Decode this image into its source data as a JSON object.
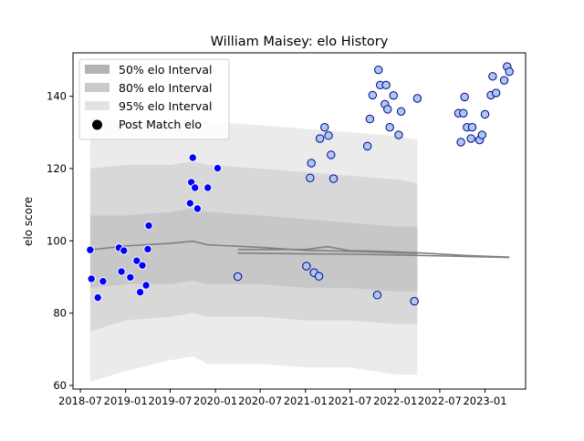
{
  "chart_data": {
    "type": "scatter",
    "title": "William Maisey: elo History",
    "xlabel": "",
    "ylabel": "elo score",
    "x_ticks": [
      "2018-07",
      "2019-01",
      "2019-07",
      "2020-01",
      "2020-07",
      "2021-01",
      "2021-07",
      "2022-01",
      "2022-07",
      "2023-01"
    ],
    "y_ticks": [
      60,
      80,
      100,
      120,
      140
    ],
    "xlim": [
      "2018-06-01",
      "2023-06-15"
    ],
    "ylim": [
      59,
      152
    ],
    "grid": false,
    "legend_position": "top-left",
    "legend": [
      {
        "label": "50% elo Interval",
        "color": "#b3b3b3"
      },
      {
        "label": "80% elo Interval",
        "color": "#cacaca"
      },
      {
        "label": "95% elo Interval",
        "color": "#e3e3e3"
      },
      {
        "label": "Post Match elo",
        "color": "#000000"
      }
    ],
    "series": [
      {
        "name": "Post Match elo",
        "kind": "points",
        "fill": "#0000ff",
        "edge": "#ffffff",
        "points": [
          [
            "2018-08-10",
            97.5
          ],
          [
            "2018-08-15",
            89.5
          ],
          [
            "2018-09-10",
            84.3
          ],
          [
            "2018-10-01",
            88.8
          ],
          [
            "2018-12-05",
            98.1
          ],
          [
            "2018-12-15",
            91.5
          ],
          [
            "2018-12-25",
            97.3
          ],
          [
            "2019-01-20",
            89.9
          ],
          [
            "2019-02-15",
            94.5
          ],
          [
            "2019-03-01",
            85.8
          ],
          [
            "2019-03-10",
            93.2
          ],
          [
            "2019-03-25",
            87.7
          ],
          [
            "2019-04-01",
            97.7
          ],
          [
            "2019-04-05",
            104.2
          ],
          [
            "2019-09-20",
            110.4
          ],
          [
            "2019-09-25",
            116.2
          ],
          [
            "2019-10-01",
            123.0
          ],
          [
            "2019-10-10",
            114.7
          ],
          [
            "2019-10-20",
            108.9
          ],
          [
            "2019-12-01",
            114.7
          ],
          [
            "2020-01-10",
            120.1
          ]
        ]
      },
      {
        "name": "Post Match elo",
        "kind": "points",
        "fill": "#aac8f0",
        "edge": "#00008b",
        "points": [
          [
            "2020-04-01",
            90.1
          ],
          [
            "2021-01-05",
            93.0
          ],
          [
            "2021-01-20",
            117.4
          ],
          [
            "2021-01-25",
            121.5
          ],
          [
            "2021-02-05",
            91.2
          ],
          [
            "2021-02-25",
            90.2
          ],
          [
            "2021-03-01",
            128.3
          ],
          [
            "2021-03-20",
            131.4
          ],
          [
            "2021-04-05",
            129.1
          ],
          [
            "2021-04-15",
            123.8
          ],
          [
            "2021-04-25",
            117.2
          ],
          [
            "2021-09-10",
            126.2
          ],
          [
            "2021-09-20",
            133.7
          ],
          [
            "2021-10-01",
            140.3
          ],
          [
            "2021-10-20",
            85.0
          ],
          [
            "2021-10-25",
            147.3
          ],
          [
            "2021-11-01",
            143.1
          ],
          [
            "2021-11-20",
            137.8
          ],
          [
            "2021-11-25",
            143.1
          ],
          [
            "2021-12-01",
            136.4
          ],
          [
            "2021-12-10",
            131.4
          ],
          [
            "2021-12-25",
            140.2
          ],
          [
            "2022-01-15",
            129.3
          ],
          [
            "2022-01-25",
            135.8
          ],
          [
            "2022-03-20",
            83.3
          ],
          [
            "2022-04-01",
            139.4
          ],
          [
            "2022-09-15",
            135.3
          ],
          [
            "2022-09-25",
            127.3
          ],
          [
            "2022-10-05",
            135.3
          ],
          [
            "2022-10-10",
            139.8
          ],
          [
            "2022-10-20",
            131.4
          ],
          [
            "2022-11-05",
            128.3
          ],
          [
            "2022-11-10",
            131.4
          ],
          [
            "2022-12-10",
            127.9
          ],
          [
            "2022-12-20",
            129.3
          ],
          [
            "2023-01-01",
            135.0
          ],
          [
            "2023-01-25",
            140.3
          ],
          [
            "2023-02-01",
            145.5
          ],
          [
            "2023-02-15",
            140.9
          ],
          [
            "2023-03-20",
            144.4
          ],
          [
            "2023-04-01",
            148.2
          ],
          [
            "2023-04-10",
            146.8
          ]
        ]
      },
      {
        "name": "",
        "kind": "line",
        "color": "#808080",
        "points": [
          [
            "2018-08-10",
            97.5
          ],
          [
            "2019-01-01",
            98.6
          ],
          [
            "2019-07-01",
            99.3
          ],
          [
            "2019-10-01",
            99.9
          ],
          [
            "2019-12-01",
            98.9
          ],
          [
            "2020-07-01",
            98.2
          ],
          [
            "2021-01-01",
            97.4
          ],
          [
            "2021-07-01",
            97.1
          ],
          [
            "2022-01-01",
            96.7
          ],
          [
            "2022-04-01",
            96.5
          ]
        ]
      },
      {
        "name": "",
        "kind": "line",
        "color": "#808080",
        "points": [
          [
            "2020-04-01",
            97.6
          ],
          [
            "2021-01-01",
            97.6
          ],
          [
            "2021-04-01",
            98.4
          ],
          [
            "2021-07-01",
            97.3
          ],
          [
            "2021-11-01",
            97.1
          ],
          [
            "2022-04-01",
            96.7
          ],
          [
            "2022-10-01",
            96.0
          ],
          [
            "2023-04-10",
            95.5
          ]
        ]
      },
      {
        "name": "",
        "kind": "line",
        "color": "#808080",
        "points": [
          [
            "2020-04-01",
            96.6
          ],
          [
            "2021-01-01",
            96.4
          ],
          [
            "2021-07-01",
            96.3
          ],
          [
            "2022-01-01",
            96.1
          ],
          [
            "2022-10-01",
            95.7
          ],
          [
            "2023-04-10",
            95.4
          ]
        ]
      }
    ],
    "intervals": [
      {
        "x": [
          "2018-08-10",
          "2019-01-01",
          "2019-07-01",
          "2019-10-01",
          "2019-12-01",
          "2020-07-01",
          "2021-01-01",
          "2021-07-01",
          "2022-01-01",
          "2022-04-01"
        ],
        "p95": [
          [
            61,
            134
          ],
          [
            64,
            133
          ],
          [
            67,
            133
          ],
          [
            68,
            134
          ],
          [
            66,
            133
          ],
          [
            66,
            132
          ],
          [
            65,
            131
          ],
          [
            65,
            130
          ],
          [
            63,
            129
          ],
          [
            63,
            128
          ]
        ],
        "p80": [
          [
            75,
            120
          ],
          [
            78,
            121
          ],
          [
            79,
            121
          ],
          [
            80,
            122
          ],
          [
            79,
            121
          ],
          [
            79,
            120
          ],
          [
            78,
            119
          ],
          [
            78,
            118
          ],
          [
            77,
            117
          ],
          [
            77,
            116
          ]
        ],
        "p50": [
          [
            87,
            107
          ],
          [
            88,
            107
          ],
          [
            88,
            108
          ],
          [
            89,
            109
          ],
          [
            88,
            108
          ],
          [
            88,
            107
          ],
          [
            87,
            106
          ],
          [
            87,
            105
          ],
          [
            86,
            104
          ],
          [
            86,
            104
          ]
        ]
      }
    ]
  }
}
